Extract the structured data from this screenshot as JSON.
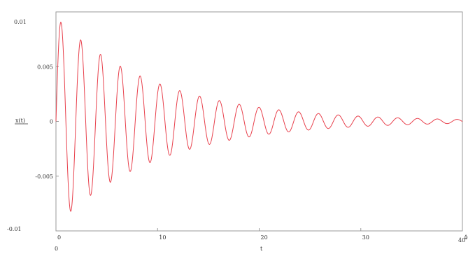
{
  "chart_data": {
    "type": "line",
    "title": "",
    "xlabel": "t",
    "ylabel": "x(t)",
    "xlim": [
      0,
      40
    ],
    "ylim": [
      -0.01,
      0.01
    ],
    "x_ticks": [
      0,
      10,
      20,
      30,
      40
    ],
    "x_tick_labels": [
      "0",
      "10",
      "20",
      "30",
      "40"
    ],
    "x_range_labels": {
      "min": "0",
      "max": "40"
    },
    "y_ticks": [
      -0.005,
      0,
      0.005
    ],
    "y_tick_labels": [
      "-0.005",
      "0",
      "0.005"
    ],
    "y_range_labels": {
      "max": "0.01",
      "min": "-0.01"
    },
    "grid": false,
    "legend": "none",
    "series": [
      {
        "color": "#e8404c",
        "model": {
          "amplitude": 0.0095,
          "decay_rate": 0.1,
          "period": 1.95,
          "phase": 0,
          "shape": "sin"
        },
        "sample_points": [
          {
            "t": 0.5,
            "x": 0.0091
          },
          {
            "t": 1.5,
            "x": -0.008
          },
          {
            "t": 2.5,
            "x": 0.0074
          },
          {
            "t": 3.5,
            "x": -0.0061
          },
          {
            "t": 4.5,
            "x": 0.006
          },
          {
            "t": 6.5,
            "x": 0.0037
          },
          {
            "t": 8.5,
            "x": 0.0032
          },
          {
            "t": 10.5,
            "x": 0.0028
          },
          {
            "t": 15,
            "x": 0.0016
          },
          {
            "t": 20,
            "x": 0.0009
          },
          {
            "t": 30,
            "x": 0.0003
          },
          {
            "t": 40,
            "x": 0.0001
          }
        ]
      }
    ]
  }
}
